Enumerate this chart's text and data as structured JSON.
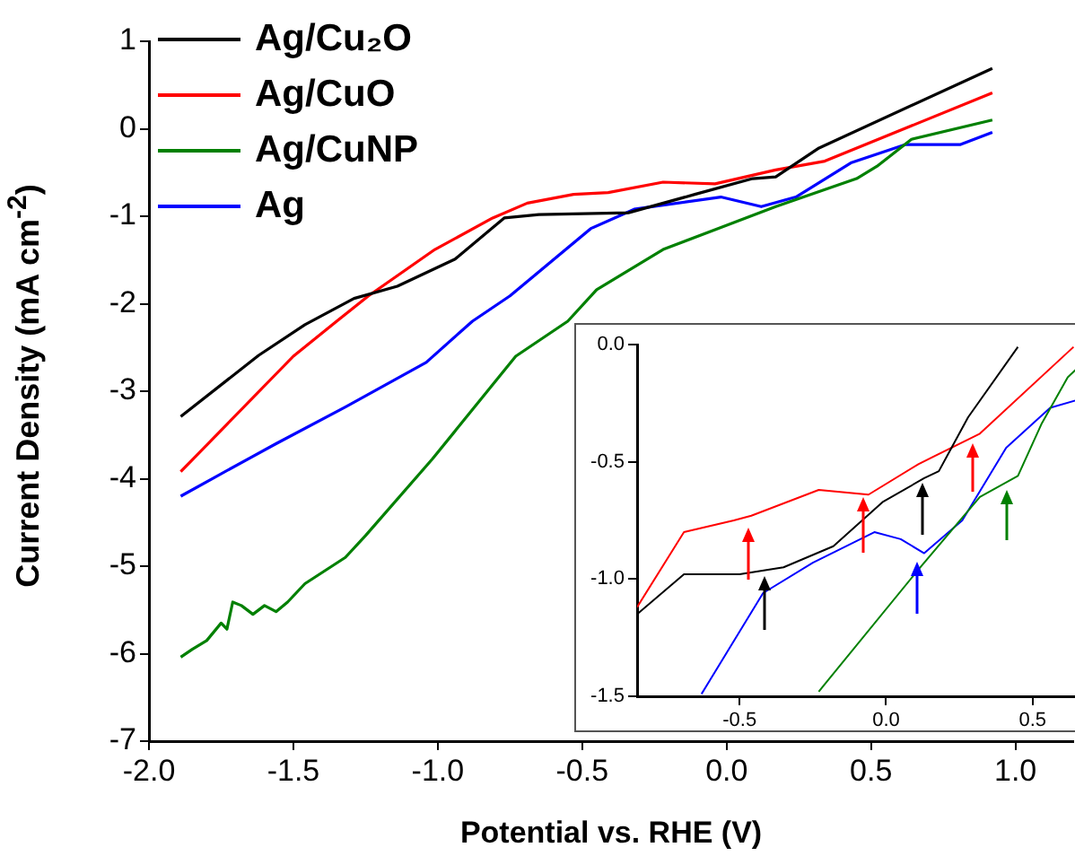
{
  "chart_data": [
    {
      "type": "line",
      "xlabel": "Potential vs. RHE (V)",
      "ylabel": "Current Density (mA cm$^{-2}$)",
      "xlim": [
        -2.0,
        1.2
      ],
      "ylim": [
        -7,
        1
      ],
      "xticks": [
        {
          "value": -2,
          "label": "-2.0"
        },
        {
          "value": -1.5,
          "label": "-1.5"
        },
        {
          "value": -1,
          "label": "-1.0"
        },
        {
          "value": -0.5,
          "label": "-0.5"
        },
        {
          "value": 0,
          "label": "0.0"
        },
        {
          "value": 0.5,
          "label": "0.5"
        },
        {
          "value": 1,
          "label": "1.0"
        }
      ],
      "yticks": [
        -7,
        -6,
        -5,
        -4,
        -3,
        -2,
        -1,
        0,
        1
      ],
      "legend": "top left",
      "marker": "none",
      "line_style": "solid",
      "series": [
        {
          "name": "Ag/Cu₂O",
          "color": "#000000",
          "x": [
            -1.89,
            -1.62,
            -1.46,
            -1.29,
            -1.14,
            -0.94,
            -0.77,
            -0.65,
            -0.34,
            -0.11,
            0.09,
            0.17,
            0.32,
            0.92
          ],
          "values": [
            -3.29,
            -2.59,
            -2.24,
            -1.94,
            -1.8,
            -1.49,
            -1.02,
            -0.98,
            -0.96,
            -0.75,
            -0.57,
            -0.55,
            -0.22,
            0.69
          ]
        },
        {
          "name": "Ag/CuO",
          "color": "#ff0000",
          "x": [
            -1.89,
            -1.5,
            -1.35,
            -1.24,
            -1.01,
            -0.81,
            -0.69,
            -0.53,
            -0.41,
            -0.22,
            -0.04,
            0.17,
            0.34,
            0.92
          ],
          "values": [
            -3.92,
            -2.6,
            -2.2,
            -1.91,
            -1.38,
            -1.02,
            -0.85,
            -0.75,
            -0.73,
            -0.61,
            -0.63,
            -0.47,
            -0.37,
            0.41
          ]
        },
        {
          "name": "Ag/CuNP",
          "color": "#008000",
          "x": [
            -1.89,
            -1.85,
            -1.8,
            -1.75,
            -1.73,
            -1.71,
            -1.68,
            -1.64,
            -1.6,
            -1.56,
            -1.52,
            -1.46,
            -1.32,
            -1.25,
            -1.02,
            -0.73,
            -0.55,
            -0.45,
            -0.22,
            0.17,
            0.45,
            0.52,
            0.64,
            0.92
          ],
          "values": [
            -6.04,
            -5.95,
            -5.85,
            -5.65,
            -5.72,
            -5.41,
            -5.45,
            -5.55,
            -5.45,
            -5.52,
            -5.41,
            -5.2,
            -4.9,
            -4.65,
            -3.78,
            -2.6,
            -2.2,
            -1.84,
            -1.38,
            -0.89,
            -0.57,
            -0.43,
            -0.12,
            0.1
          ]
        },
        {
          "name": "Ag",
          "color": "#0000ff",
          "x": [
            -1.89,
            -1.77,
            -1.56,
            -1.32,
            -1.04,
            -0.88,
            -0.75,
            -0.47,
            -0.32,
            -0.02,
            0.12,
            0.24,
            0.43,
            0.62,
            0.81,
            0.92
          ],
          "values": [
            -4.2,
            -3.98,
            -3.6,
            -3.18,
            -2.67,
            -2.2,
            -1.91,
            -1.14,
            -0.92,
            -0.78,
            -0.89,
            -0.78,
            -0.39,
            -0.18,
            -0.18,
            -0.04
          ]
        }
      ]
    },
    {
      "type": "line",
      "xlim": [
        -0.85,
        0.7
      ],
      "ylim": [
        -1.5,
        0
      ],
      "xticks": [
        {
          "value": -0.5,
          "label": "-0.5"
        },
        {
          "value": 0,
          "label": "0.0"
        },
        {
          "value": 0.5,
          "label": "0.5"
        }
      ],
      "yticks": [
        {
          "value": -1.5,
          "label": "-1.5"
        },
        {
          "value": -1,
          "label": "-1.0"
        },
        {
          "value": -0.5,
          "label": "-0.5"
        },
        {
          "value": 0,
          "label": "0.0"
        }
      ],
      "marker": "none",
      "line_style": "solid",
      "series": [
        {
          "color": "#000000",
          "x": [
            -0.85,
            -0.69,
            -0.5,
            -0.35,
            -0.18,
            -0.01,
            0.13,
            0.18,
            0.28,
            0.45
          ],
          "values": [
            -1.15,
            -0.98,
            -0.98,
            -0.95,
            -0.86,
            -0.67,
            -0.57,
            -0.54,
            -0.31,
            -0.01
          ]
        },
        {
          "color": "#ff0000",
          "x": [
            -0.85,
            -0.69,
            -0.52,
            -0.46,
            -0.23,
            -0.06,
            0.11,
            0.32,
            0.64
          ],
          "values": [
            -1.12,
            -0.8,
            -0.75,
            -0.73,
            -0.62,
            -0.64,
            -0.51,
            -0.38,
            -0.01
          ]
        },
        {
          "color": "#008000",
          "x": [
            -0.23,
            0.11,
            0.32,
            0.45,
            0.53,
            0.62,
            0.67
          ],
          "values": [
            -1.48,
            -0.96,
            -0.65,
            -0.56,
            -0.34,
            -0.14,
            -0.08
          ]
        },
        {
          "color": "#0000ff",
          "x": [
            -0.63,
            -0.42,
            -0.25,
            -0.04,
            0.05,
            0.13,
            0.26,
            0.41,
            0.56,
            0.67
          ],
          "values": [
            -1.49,
            -1.06,
            -0.93,
            -0.8,
            -0.83,
            -0.89,
            -0.75,
            -0.44,
            -0.27,
            -0.23
          ]
        }
      ]
    }
  ]
}
